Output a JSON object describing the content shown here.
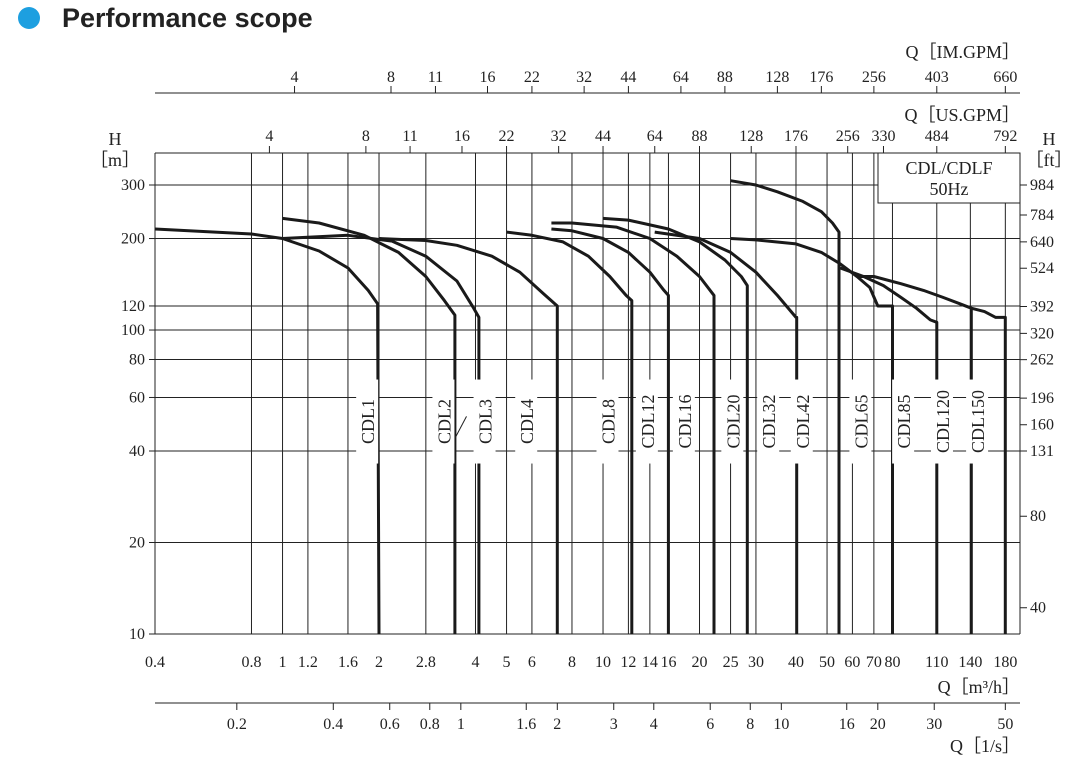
{
  "header": {
    "title": "Performance scope",
    "accent_color": "#1d9fe0"
  },
  "chart_data": {
    "type": "line",
    "title": "",
    "legend_box": [
      "CDL/CDLF",
      "50Hz"
    ],
    "xlabel": "Q [m³/h]",
    "ylabel_left": "H [m]",
    "ylabel_right": "H [ft]",
    "xscale": "log",
    "yscale": "log",
    "xlim": [
      0.4,
      200
    ],
    "ylim": [
      10,
      340
    ],
    "grid": true,
    "axis_labels": {
      "im_gpm": "Q［IM.GPM］",
      "us_gpm": "Q［US.GPM］",
      "h_left": "H",
      "h_left_unit": "［m］",
      "h_right": "H",
      "h_right_unit": "［ft］",
      "m3h": "Q［m³/h］",
      "ls": "Q［1/s］"
    },
    "x_ticks": [
      {
        "v": 0.4,
        "t": "0.4"
      },
      {
        "v": 0.8,
        "t": "0.8"
      },
      {
        "v": 1,
        "t": "1"
      },
      {
        "v": 1.2,
        "t": "1.2"
      },
      {
        "v": 1.6,
        "t": "1.6"
      },
      {
        "v": 2,
        "t": "2"
      },
      {
        "v": 2.8,
        "t": "2.8"
      },
      {
        "v": 4,
        "t": "4"
      },
      {
        "v": 5,
        "t": "5"
      },
      {
        "v": 6,
        "t": "6"
      },
      {
        "v": 8,
        "t": "8"
      },
      {
        "v": 10,
        "t": "10"
      },
      {
        "v": 12,
        "t": "12"
      },
      {
        "v": 14,
        "t": "14"
      },
      {
        "v": 16,
        "t": "16"
      },
      {
        "v": 20,
        "t": "20"
      },
      {
        "v": 25,
        "t": "25"
      },
      {
        "v": 30,
        "t": "30"
      },
      {
        "v": 40,
        "t": "40"
      },
      {
        "v": 50,
        "t": "50"
      },
      {
        "v": 60,
        "t": "60"
      },
      {
        "v": 70,
        "t": "70"
      },
      {
        "v": 80,
        "t": "80"
      },
      {
        "v": 110,
        "t": "110"
      },
      {
        "v": 140,
        "t": "140"
      },
      {
        "v": 180,
        "t": "180"
      }
    ],
    "us_gpm_ticks": [
      {
        "v": 0.91,
        "t": "4"
      },
      {
        "v": 1.82,
        "t": "8"
      },
      {
        "v": 2.5,
        "t": "11"
      },
      {
        "v": 3.63,
        "t": "16"
      },
      {
        "v": 5.0,
        "t": "22"
      },
      {
        "v": 7.27,
        "t": "32"
      },
      {
        "v": 10,
        "t": "44"
      },
      {
        "v": 14.5,
        "t": "64"
      },
      {
        "v": 20,
        "t": "88"
      },
      {
        "v": 29,
        "t": "128"
      },
      {
        "v": 40,
        "t": "176"
      },
      {
        "v": 58,
        "t": "256"
      },
      {
        "v": 75,
        "t": "330"
      },
      {
        "v": 110,
        "t": "484"
      },
      {
        "v": 180,
        "t": "792"
      }
    ],
    "im_gpm_ticks": [
      {
        "v": 1.09,
        "t": "4"
      },
      {
        "v": 2.18,
        "t": "8"
      },
      {
        "v": 3.0,
        "t": "11"
      },
      {
        "v": 4.36,
        "t": "16"
      },
      {
        "v": 6.0,
        "t": "22"
      },
      {
        "v": 8.73,
        "t": "32"
      },
      {
        "v": 12,
        "t": "44"
      },
      {
        "v": 17.5,
        "t": "64"
      },
      {
        "v": 24,
        "t": "88"
      },
      {
        "v": 35,
        "t": "128"
      },
      {
        "v": 48,
        "t": "176"
      },
      {
        "v": 70,
        "t": "256"
      },
      {
        "v": 110,
        "t": "403"
      },
      {
        "v": 180,
        "t": "660"
      }
    ],
    "ls_ticks": [
      {
        "v": 0.72,
        "t": "0.2"
      },
      {
        "v": 1.44,
        "t": "0.4"
      },
      {
        "v": 2.16,
        "t": "0.6"
      },
      {
        "v": 2.88,
        "t": "0.8"
      },
      {
        "v": 3.6,
        "t": "1"
      },
      {
        "v": 5.76,
        "t": "1.6"
      },
      {
        "v": 7.2,
        "t": "2"
      },
      {
        "v": 10.8,
        "t": "3"
      },
      {
        "v": 14.4,
        "t": "4"
      },
      {
        "v": 21.6,
        "t": "6"
      },
      {
        "v": 28.8,
        "t": "8"
      },
      {
        "v": 36,
        "t": "10"
      },
      {
        "v": 57.6,
        "t": "16"
      },
      {
        "v": 72,
        "t": "20"
      },
      {
        "v": 108,
        "t": "30"
      },
      {
        "v": 180,
        "t": "50"
      }
    ],
    "y_ticks_m": [
      10,
      20,
      40,
      60,
      80,
      100,
      120,
      200,
      300
    ],
    "y_ticks_ft": [
      {
        "v": 12.2,
        "t": "40"
      },
      {
        "v": 24.4,
        "t": "80"
      },
      {
        "v": 40,
        "t": "131"
      },
      {
        "v": 48.8,
        "t": "160"
      },
      {
        "v": 59.7,
        "t": "196"
      },
      {
        "v": 79.9,
        "t": "262"
      },
      {
        "v": 97.5,
        "t": "320"
      },
      {
        "v": 119.5,
        "t": "392"
      },
      {
        "v": 159.7,
        "t": "524"
      },
      {
        "v": 195,
        "t": "640"
      },
      {
        "v": 239,
        "t": "784"
      },
      {
        "v": 300,
        "t": "984"
      }
    ],
    "series": [
      {
        "name": "CDL1",
        "label_x": 1.85,
        "points": [
          [
            0.4,
            215
          ],
          [
            0.8,
            207
          ],
          [
            1,
            200
          ],
          [
            1.3,
            182
          ],
          [
            1.6,
            160
          ],
          [
            1.85,
            135
          ],
          [
            1.98,
            122
          ],
          [
            2.0,
            10
          ]
        ]
      },
      {
        "name": "CDL2",
        "label_x": 3.2,
        "points": [
          [
            1,
            233
          ],
          [
            1.3,
            225
          ],
          [
            1.8,
            205
          ],
          [
            2.3,
            180
          ],
          [
            2.8,
            150
          ],
          [
            3.2,
            125
          ],
          [
            3.45,
            112
          ],
          [
            3.45,
            10
          ]
        ]
      },
      {
        "name": "CDL3",
        "label_x": 4.3,
        "points": [
          [
            1,
            200
          ],
          [
            1.6,
            205
          ],
          [
            2.2,
            196
          ],
          [
            2.8,
            175
          ],
          [
            3.5,
            145
          ],
          [
            3.95,
            118
          ],
          [
            4.1,
            110
          ],
          [
            4.1,
            10
          ]
        ]
      },
      {
        "name": "CDL4",
        "label_x": 5.8,
        "points": [
          [
            2,
            200
          ],
          [
            2.8,
            197
          ],
          [
            3.5,
            190
          ],
          [
            4.5,
            175
          ],
          [
            5.5,
            155
          ],
          [
            6.5,
            132
          ],
          [
            7.2,
            120
          ],
          [
            7.2,
            10
          ]
        ]
      },
      {
        "name": "CDL8",
        "label_x": 10.4,
        "points": [
          [
            5,
            210
          ],
          [
            6,
            205
          ],
          [
            7.5,
            195
          ],
          [
            9,
            175
          ],
          [
            10.5,
            150
          ],
          [
            11.8,
            130
          ],
          [
            12.3,
            125
          ],
          [
            12.3,
            10
          ]
        ]
      },
      {
        "name": "CDL12",
        "label_x": 13.8,
        "points": [
          [
            6.9,
            215
          ],
          [
            8,
            212
          ],
          [
            10,
            200
          ],
          [
            12,
            180
          ],
          [
            14,
            155
          ],
          [
            15.5,
            135
          ],
          [
            16,
            130
          ],
          [
            16,
            10
          ]
        ]
      },
      {
        "name": "CDL16",
        "label_x": 18,
        "points": [
          [
            6.9,
            225
          ],
          [
            8,
            225
          ],
          [
            11,
            218
          ],
          [
            14,
            200
          ],
          [
            17,
            175
          ],
          [
            20,
            150
          ],
          [
            22.2,
            130
          ],
          [
            22.2,
            10
          ]
        ]
      },
      {
        "name": "CDL20",
        "label_x": 25.5,
        "points": [
          [
            10,
            233
          ],
          [
            12,
            230
          ],
          [
            16,
            215
          ],
          [
            20,
            195
          ],
          [
            24,
            170
          ],
          [
            27,
            150
          ],
          [
            28.2,
            140
          ],
          [
            28.2,
            10
          ]
        ]
      },
      {
        "name": "CDL32",
        "label_x": 33,
        "points": [
          [
            14.5,
            210
          ],
          [
            20,
            200
          ],
          [
            25,
            180
          ],
          [
            30,
            155
          ],
          [
            35,
            130
          ],
          [
            40,
            110
          ],
          [
            40.2,
            110
          ],
          [
            40.2,
            10
          ]
        ]
      },
      {
        "name": "CDL42",
        "label_x": 42,
        "points": [
          [
            25,
            310
          ],
          [
            30,
            300
          ],
          [
            35,
            285
          ],
          [
            42,
            265
          ],
          [
            48,
            245
          ],
          [
            52,
            225
          ],
          [
            54.5,
            210
          ],
          [
            54.5,
            10
          ]
        ]
      },
      {
        "name": "CDL65",
        "label_x": 64,
        "points": [
          [
            25,
            200
          ],
          [
            30,
            198
          ],
          [
            40,
            192
          ],
          [
            48,
            180
          ],
          [
            55,
            165
          ],
          [
            62,
            150
          ],
          [
            68,
            138
          ],
          [
            72,
            120
          ],
          [
            80,
            120
          ],
          [
            80,
            10
          ]
        ]
      },
      {
        "name": "CDL85",
        "label_x": 87,
        "points": [
          [
            55,
            160
          ],
          [
            65,
            150
          ],
          [
            75,
            140
          ],
          [
            85,
            128
          ],
          [
            95,
            118
          ],
          [
            105,
            108
          ],
          [
            110,
            106
          ],
          [
            110,
            10
          ]
        ]
      },
      {
        "name": "CDL120",
        "label_x": 115,
        "points": [
          [
            62,
            150
          ],
          [
            70,
            150
          ],
          [
            85,
            142
          ],
          [
            100,
            135
          ],
          [
            115,
            128
          ],
          [
            130,
            122
          ],
          [
            141,
            118
          ],
          [
            141,
            10
          ]
        ]
      },
      {
        "name": "CDL150",
        "label_x": 148,
        "points": [
          [
            141,
            118
          ],
          [
            155,
            115
          ],
          [
            168,
            110
          ],
          [
            180,
            110
          ],
          [
            180,
            10
          ]
        ]
      }
    ]
  }
}
